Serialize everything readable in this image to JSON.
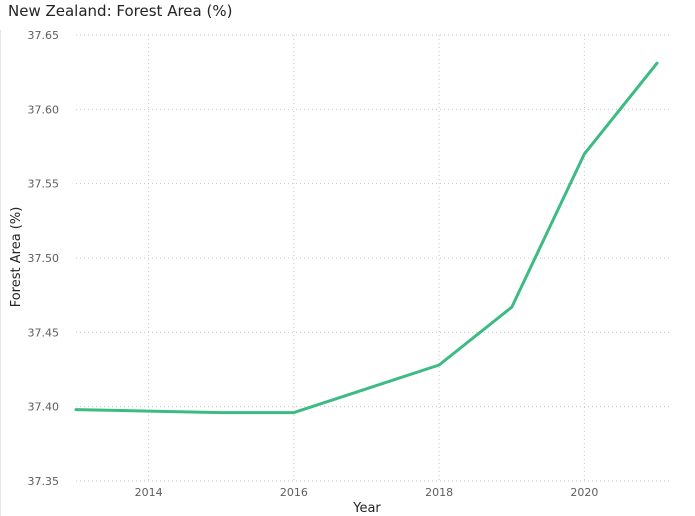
{
  "chart_data": {
    "type": "line",
    "title": "New Zealand: Forest Area (%)",
    "xlabel": "Year",
    "ylabel": "Forest Area (%)",
    "x": [
      2013,
      2014,
      2015,
      2016,
      2017,
      2018,
      2019,
      2020,
      2021
    ],
    "series": [
      {
        "values": [
          37.398,
          37.397,
          37.396,
          37.396,
          37.412,
          37.428,
          37.467,
          37.57,
          37.631
        ]
      }
    ],
    "xlim": [
      2013,
      2021
    ],
    "ylim": [
      37.35,
      37.65
    ],
    "xticks": [
      "2014",
      "2016",
      "2018",
      "2020"
    ],
    "yticks": [
      "37.35",
      "37.40",
      "37.45",
      "37.50",
      "37.55",
      "37.60",
      "37.65"
    ],
    "grid": true,
    "line_color": "#3dbb84",
    "grid_color": "#c8c6c4"
  }
}
